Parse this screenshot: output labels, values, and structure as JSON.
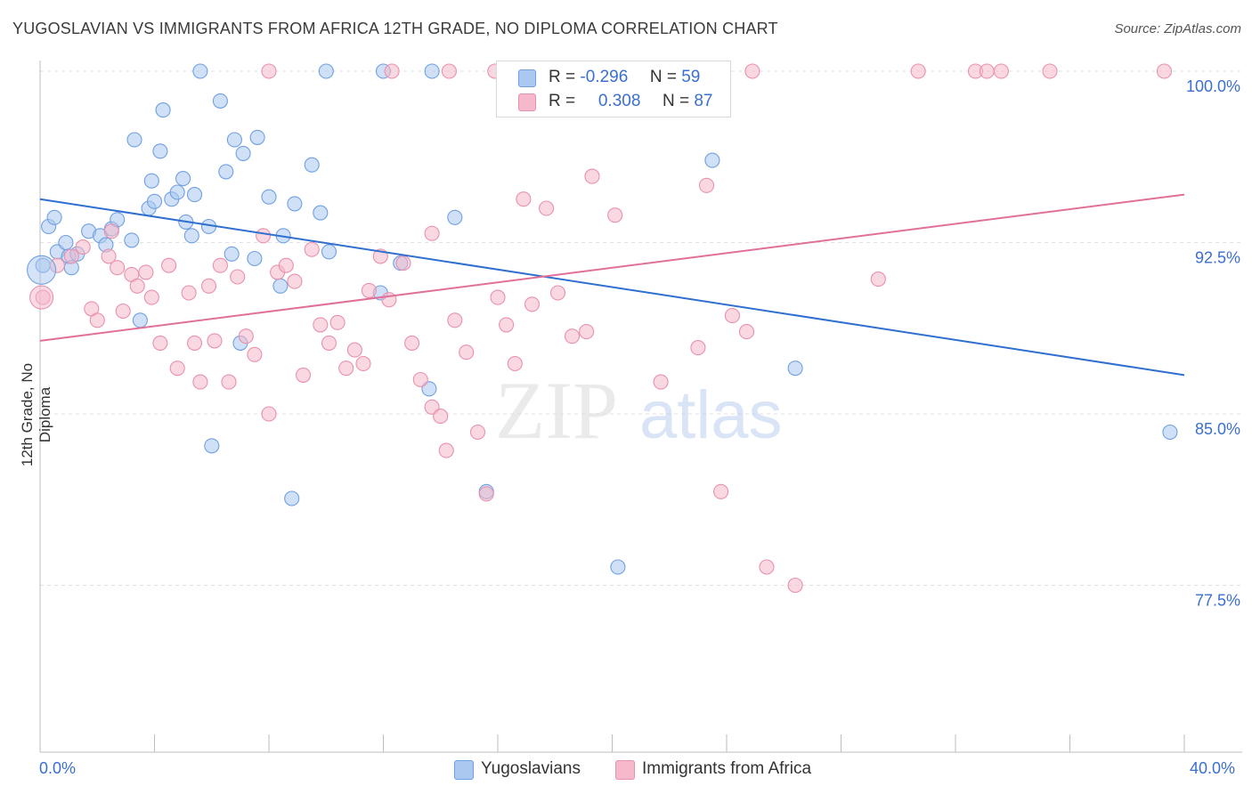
{
  "title": "YUGOSLAVIAN VS IMMIGRANTS FROM AFRICA 12TH GRADE, NO DIPLOMA CORRELATION CHART",
  "source": "Source: ZipAtlas.com",
  "watermark": {
    "zip": "ZIP",
    "atlas": "atlas"
  },
  "legend": {
    "r_label": "R =",
    "n_label": "N =",
    "rows": [
      {
        "r": "-0.296",
        "n": "59",
        "color": "#aac8f0"
      },
      {
        "r": "0.308",
        "n": "87",
        "color": "#f6b8cb"
      }
    ]
  },
  "bottom_legend": [
    {
      "label": "Yugoslavians",
      "color": "#aac8f0"
    },
    {
      "label": "Immigrants from Africa",
      "color": "#f6b8cb"
    }
  ],
  "chart_data": {
    "type": "scatter",
    "title": "YUGOSLAVIAN VS IMMIGRANTS FROM AFRICA 12TH GRADE, NO DIPLOMA CORRELATION CHART",
    "xlabel": "",
    "ylabel": "12th Grade, No Diploma",
    "xlim": [
      0,
      40
    ],
    "ylim": [
      70,
      100.9
    ],
    "x_tick_labels": [
      "0.0%",
      "40.0%"
    ],
    "y_ticks": [
      {
        "value": 100,
        "label": "100.0%"
      },
      {
        "value": 92.5,
        "label": "92.5%"
      },
      {
        "value": 85,
        "label": "85.0%"
      },
      {
        "value": 77.5,
        "label": "77.5%"
      }
    ],
    "grid": true,
    "series": [
      {
        "name": "Yugoslavians",
        "color": "#6fa0e0",
        "fill": "#aac8f0",
        "trend": {
          "x": [
            0,
            40
          ],
          "y": [
            94.4,
            86.7
          ],
          "color": "#2f6fd0"
        },
        "points": [
          [
            0.1,
            91.5
          ],
          [
            0.3,
            93.2
          ],
          [
            0.5,
            93.6
          ],
          [
            0.6,
            92.1
          ],
          [
            0.9,
            92.5
          ],
          [
            1.0,
            91.9
          ],
          [
            1.1,
            91.4
          ],
          [
            1.3,
            92.0
          ],
          [
            1.7,
            93.0
          ],
          [
            2.1,
            92.8
          ],
          [
            2.3,
            92.4
          ],
          [
            2.5,
            93.1
          ],
          [
            2.7,
            93.5
          ],
          [
            3.2,
            92.6
          ],
          [
            3.3,
            97.0
          ],
          [
            3.5,
            89.1
          ],
          [
            3.8,
            94.0
          ],
          [
            4.0,
            94.3
          ],
          [
            4.2,
            96.5
          ],
          [
            4.3,
            98.3
          ],
          [
            4.6,
            94.4
          ],
          [
            4.8,
            94.7
          ],
          [
            5.0,
            95.3
          ],
          [
            5.1,
            93.4
          ],
          [
            5.3,
            92.8
          ],
          [
            5.4,
            94.6
          ],
          [
            5.6,
            100.0
          ],
          [
            5.9,
            93.2
          ],
          [
            6.0,
            83.6
          ],
          [
            6.3,
            98.7
          ],
          [
            6.5,
            95.6
          ],
          [
            6.8,
            97.0
          ],
          [
            7.0,
            88.1
          ],
          [
            7.1,
            96.4
          ],
          [
            7.5,
            91.8
          ],
          [
            7.6,
            97.1
          ],
          [
            8.0,
            94.5
          ],
          [
            8.5,
            92.8
          ],
          [
            8.4,
            90.6
          ],
          [
            8.9,
            94.2
          ],
          [
            8.8,
            81.3
          ],
          [
            9.5,
            95.9
          ],
          [
            9.8,
            93.8
          ],
          [
            10.1,
            92.1
          ],
          [
            11.9,
            90.3
          ],
          [
            12.0,
            100.0
          ],
          [
            13.7,
            100.0
          ],
          [
            10.0,
            100.0
          ],
          [
            12.6,
            91.6
          ],
          [
            13.6,
            86.1
          ],
          [
            14.5,
            93.6
          ],
          [
            15.6,
            81.6
          ],
          [
            20.0,
            100.0
          ],
          [
            20.2,
            78.3
          ],
          [
            23.5,
            96.1
          ],
          [
            26.4,
            87.0
          ],
          [
            39.5,
            84.2
          ],
          [
            3.9,
            95.2
          ],
          [
            6.7,
            92.0
          ]
        ]
      },
      {
        "name": "Immigrants from Africa",
        "color": "#e891ad",
        "fill": "#f6b8cb",
        "trend": {
          "x": [
            0,
            40
          ],
          "y": [
            88.2,
            94.6
          ],
          "color": "#e0709a"
        },
        "points": [
          [
            0.1,
            90.1
          ],
          [
            0.6,
            91.5
          ],
          [
            1.1,
            91.9
          ],
          [
            1.5,
            92.3
          ],
          [
            1.8,
            89.6
          ],
          [
            2.0,
            89.1
          ],
          [
            2.4,
            91.9
          ],
          [
            2.7,
            91.4
          ],
          [
            2.9,
            89.5
          ],
          [
            3.2,
            91.1
          ],
          [
            3.4,
            90.6
          ],
          [
            3.7,
            91.2
          ],
          [
            3.9,
            90.1
          ],
          [
            4.2,
            88.1
          ],
          [
            4.5,
            91.5
          ],
          [
            4.8,
            87.0
          ],
          [
            5.2,
            90.3
          ],
          [
            5.4,
            88.1
          ],
          [
            5.6,
            86.4
          ],
          [
            5.9,
            90.6
          ],
          [
            6.1,
            88.2
          ],
          [
            6.3,
            91.5
          ],
          [
            6.6,
            86.4
          ],
          [
            6.9,
            91.0
          ],
          [
            7.2,
            88.4
          ],
          [
            7.5,
            87.6
          ],
          [
            7.8,
            92.8
          ],
          [
            8.0,
            85.0
          ],
          [
            8.3,
            91.2
          ],
          [
            8.6,
            91.5
          ],
          [
            8.9,
            90.8
          ],
          [
            9.2,
            86.7
          ],
          [
            9.5,
            92.2
          ],
          [
            9.8,
            88.9
          ],
          [
            10.1,
            88.1
          ],
          [
            10.4,
            89.0
          ],
          [
            10.7,
            87.0
          ],
          [
            11.0,
            87.8
          ],
          [
            11.3,
            87.2
          ],
          [
            11.5,
            90.4
          ],
          [
            11.9,
            91.9
          ],
          [
            12.2,
            90.0
          ],
          [
            12.7,
            91.6
          ],
          [
            13.0,
            88.1
          ],
          [
            13.3,
            86.5
          ],
          [
            13.7,
            85.3
          ],
          [
            14.0,
            84.9
          ],
          [
            14.2,
            83.4
          ],
          [
            14.5,
            89.1
          ],
          [
            14.9,
            87.7
          ],
          [
            15.3,
            84.2
          ],
          [
            15.6,
            81.5
          ],
          [
            16.0,
            90.1
          ],
          [
            16.3,
            88.9
          ],
          [
            16.6,
            87.2
          ],
          [
            16.9,
            94.4
          ],
          [
            17.2,
            89.8
          ],
          [
            17.7,
            94.0
          ],
          [
            18.1,
            90.3
          ],
          [
            18.6,
            88.4
          ],
          [
            19.1,
            88.6
          ],
          [
            19.3,
            95.4
          ],
          [
            20.1,
            93.7
          ],
          [
            21.7,
            86.4
          ],
          [
            23.0,
            87.9
          ],
          [
            23.3,
            95.0
          ],
          [
            24.2,
            89.3
          ],
          [
            24.7,
            88.6
          ],
          [
            24.9,
            100.0
          ],
          [
            25.4,
            78.3
          ],
          [
            26.4,
            77.5
          ],
          [
            29.3,
            90.9
          ],
          [
            30.7,
            100.0
          ],
          [
            32.7,
            100.0
          ],
          [
            33.1,
            100.0
          ],
          [
            33.6,
            100.0
          ],
          [
            35.3,
            100.0
          ],
          [
            39.3,
            100.0
          ],
          [
            13.7,
            92.9
          ],
          [
            8.0,
            100.0
          ],
          [
            20.5,
            100.0
          ],
          [
            21.0,
            99.0
          ],
          [
            14.3,
            100.0
          ],
          [
            15.9,
            100.0
          ],
          [
            2.5,
            93.0
          ],
          [
            23.8,
            81.6
          ],
          [
            12.3,
            100.0
          ]
        ]
      }
    ]
  }
}
